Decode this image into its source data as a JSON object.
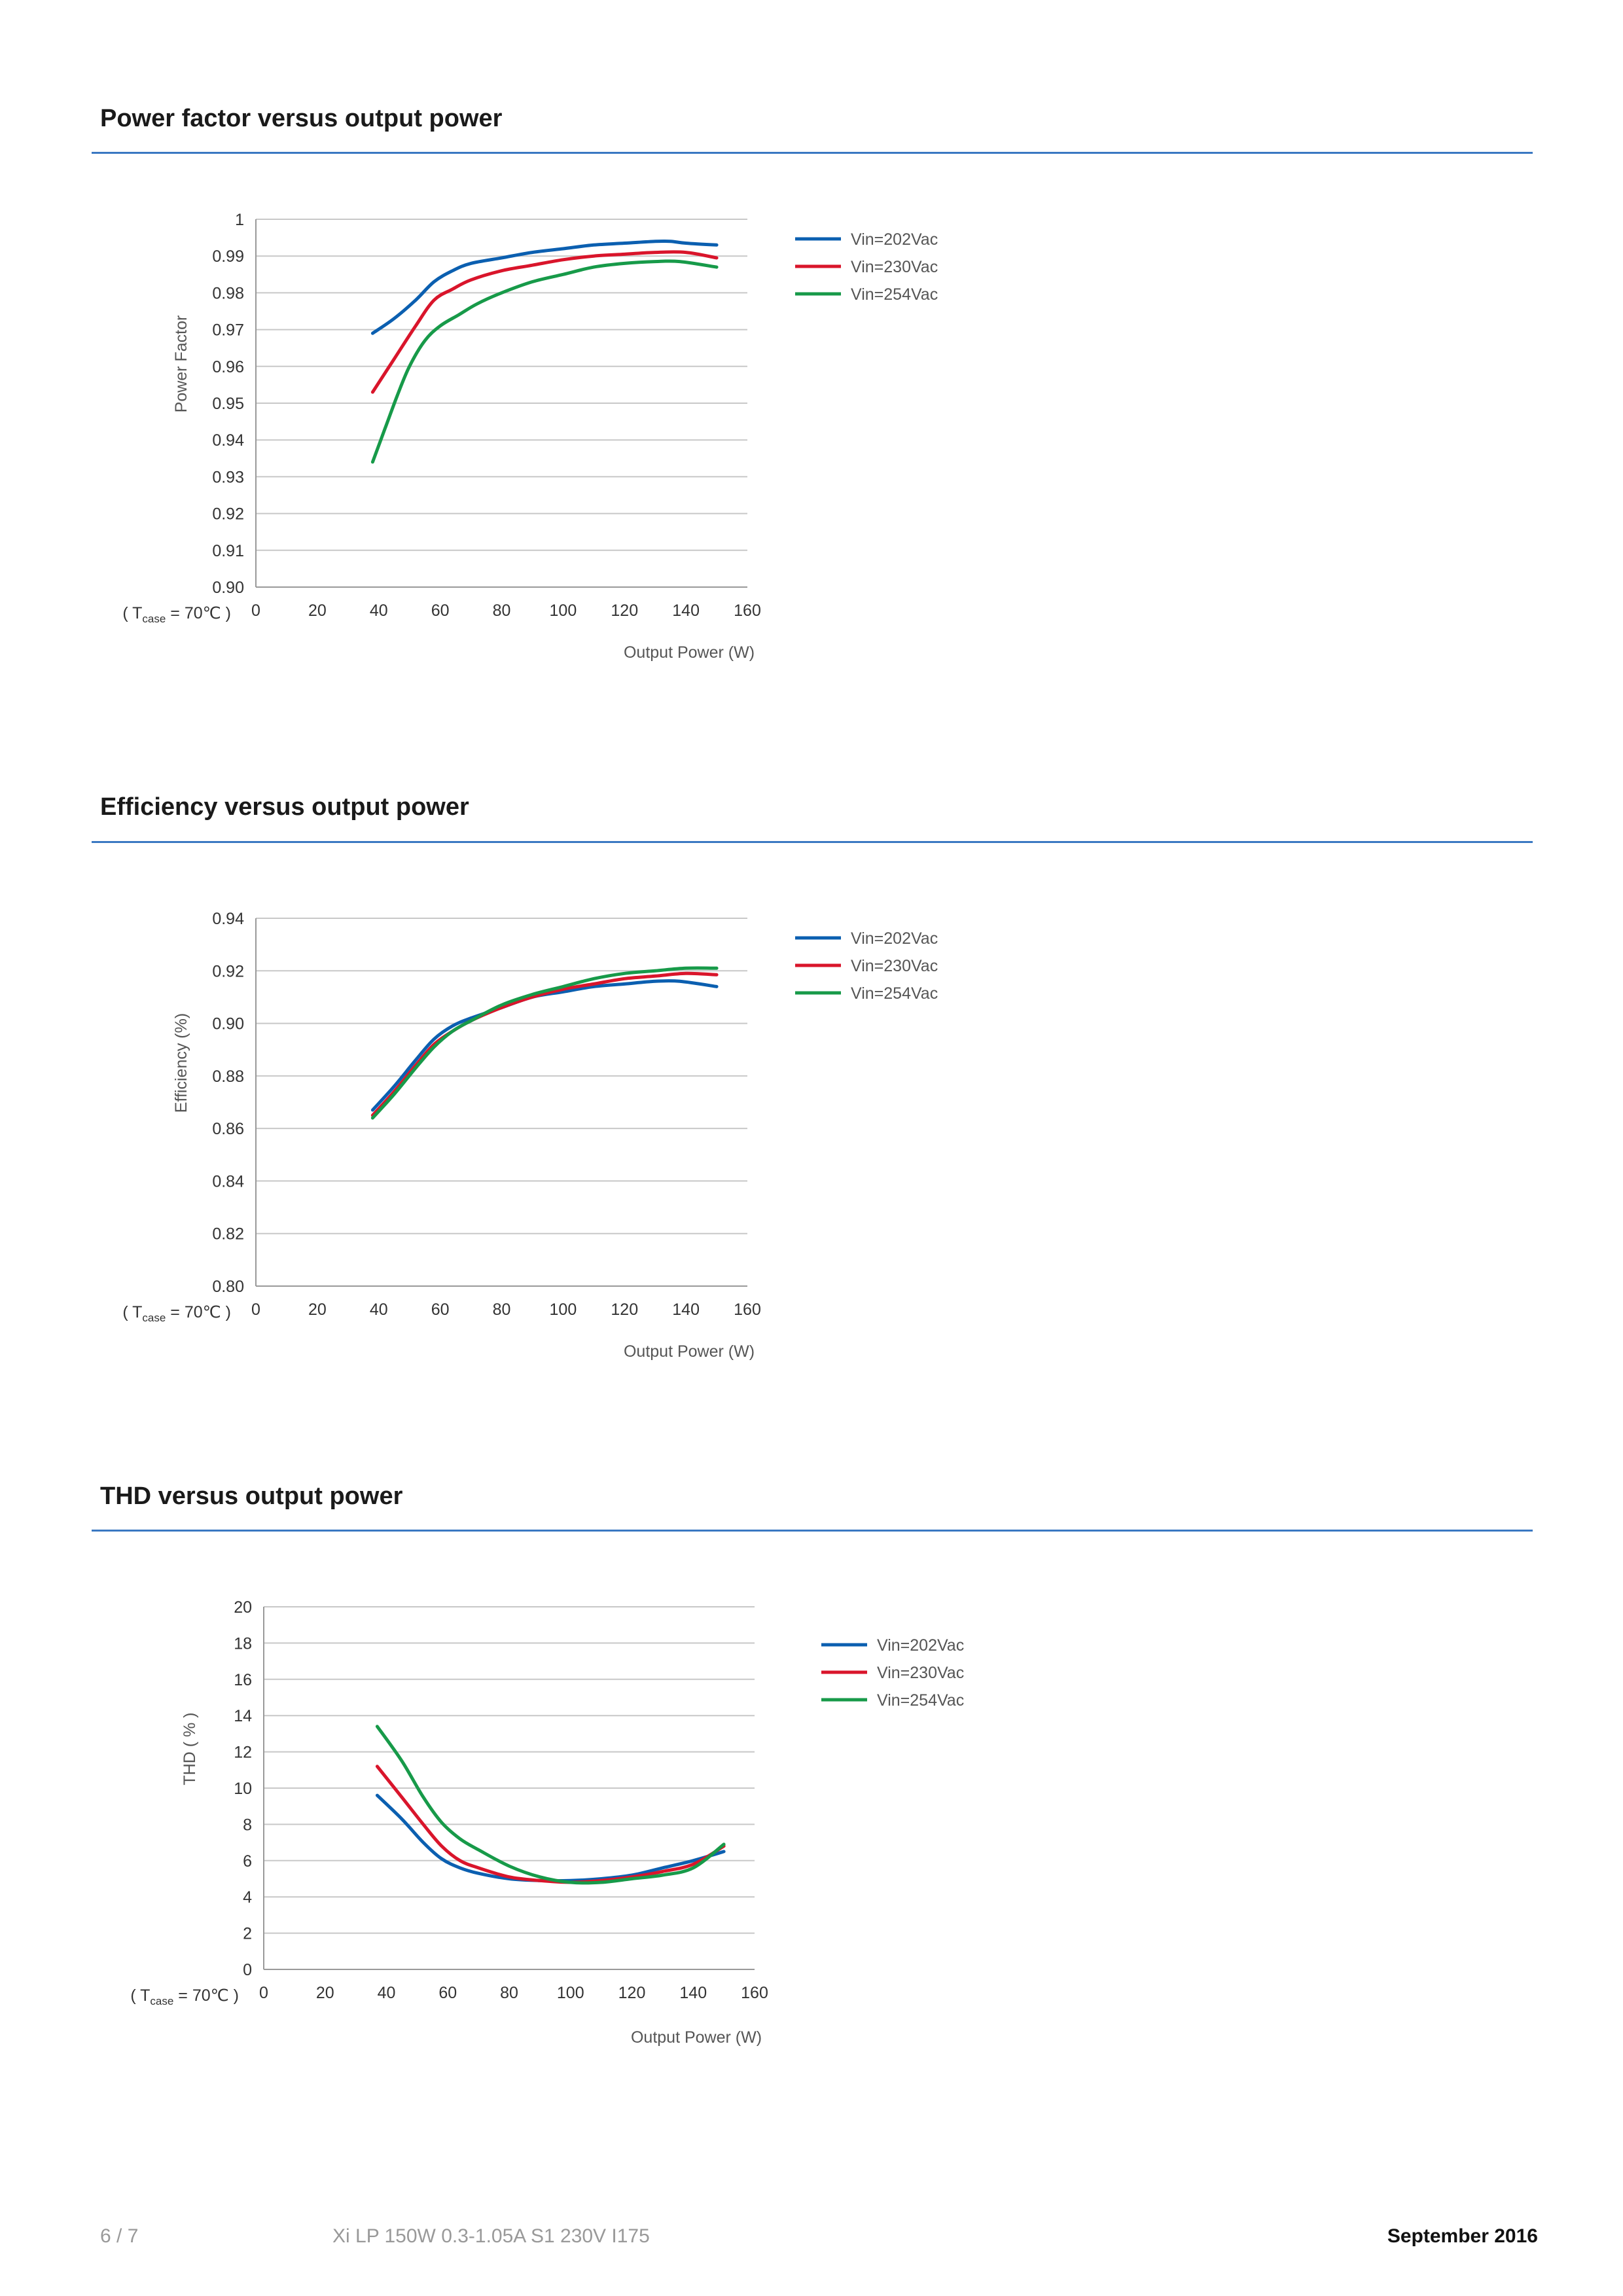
{
  "sections": [
    {
      "title": "Power factor versus output power",
      "chart_data": {
        "type": "line",
        "ylabel": "Power Factor",
        "xlabel": "Output Power (W)",
        "condition": {
          "prefix": "( T",
          "sub": "case",
          "suffix": " = 70℃ )"
        },
        "xlim": [
          0,
          160
        ],
        "ylim": [
          0.9,
          1.0
        ],
        "xticks": [
          0,
          20,
          40,
          60,
          80,
          100,
          120,
          140,
          160
        ],
        "xtick_labels": [
          "0",
          "20",
          "40",
          "60",
          "80",
          "100",
          "120",
          "140",
          "160"
        ],
        "yticks": [
          0.9,
          0.91,
          0.92,
          0.93,
          0.94,
          0.95,
          0.96,
          0.97,
          0.98,
          0.99,
          1.0
        ],
        "ytick_labels": [
          "0.90",
          "0.91",
          "0.92",
          "0.93",
          "0.94",
          "0.95",
          "0.96",
          "0.97",
          "0.98",
          "0.99",
          "1"
        ],
        "grid": true,
        "legend_position": "right",
        "series": [
          {
            "name": "Vin=202Vac",
            "color": "#0b5fb0",
            "x": [
              38,
              45,
              52,
              58,
              64,
              70,
              80,
              90,
              100,
              110,
              120,
              130,
              135,
              140,
              150
            ],
            "y": [
              0.969,
              0.973,
              0.978,
              0.983,
              0.986,
              0.988,
              0.9895,
              0.991,
              0.992,
              0.993,
              0.9935,
              0.994,
              0.994,
              0.9935,
              0.993
            ]
          },
          {
            "name": "Vin=230Vac",
            "color": "#d9152b",
            "x": [
              38,
              45,
              52,
              58,
              64,
              70,
              80,
              90,
              100,
              110,
              120,
              130,
              140,
              150
            ],
            "y": [
              0.953,
              0.962,
              0.971,
              0.978,
              0.981,
              0.9835,
              0.986,
              0.9875,
              0.989,
              0.99,
              0.9905,
              0.991,
              0.991,
              0.9895
            ]
          },
          {
            "name": "Vin=254Vac",
            "color": "#179a49",
            "x": [
              38,
              42,
              46,
              50,
              55,
              60,
              66,
              72,
              80,
              90,
              100,
              110,
              120,
              130,
              138,
              150
            ],
            "y": [
              0.934,
              0.943,
              0.952,
              0.96,
              0.967,
              0.971,
              0.974,
              0.977,
              0.98,
              0.983,
              0.985,
              0.987,
              0.988,
              0.9885,
              0.9885,
              0.987
            ]
          }
        ]
      }
    },
    {
      "title": "Efficiency versus output power",
      "chart_data": {
        "type": "line",
        "ylabel": "Efficiency (%)",
        "xlabel": "Output Power (W)",
        "condition": {
          "prefix": "( T",
          "sub": "case",
          "suffix": " = 70℃ )"
        },
        "xlim": [
          0,
          160
        ],
        "ylim": [
          0.8,
          0.94
        ],
        "xticks": [
          0,
          20,
          40,
          60,
          80,
          100,
          120,
          140,
          160
        ],
        "xtick_labels": [
          "0",
          "20",
          "40",
          "60",
          "80",
          "100",
          "120",
          "140",
          "160"
        ],
        "yticks": [
          0.8,
          0.82,
          0.84,
          0.86,
          0.88,
          0.9,
          0.92,
          0.94
        ],
        "ytick_labels": [
          "0.80",
          "0.82",
          "0.84",
          "0.86",
          "0.88",
          "0.90",
          "0.92",
          "0.94"
        ],
        "grid": true,
        "legend_position": "right",
        "series": [
          {
            "name": "Vin=202Vac",
            "color": "#0b5fb0",
            "x": [
              38,
              45,
              52,
              58,
              64,
              70,
              80,
              90,
              100,
              110,
              120,
              130,
              138,
              150
            ],
            "y": [
              0.867,
              0.876,
              0.886,
              0.894,
              0.899,
              0.902,
              0.906,
              0.91,
              0.912,
              0.914,
              0.915,
              0.916,
              0.916,
              0.914
            ]
          },
          {
            "name": "Vin=230Vac",
            "color": "#d9152b",
            "x": [
              38,
              45,
              52,
              58,
              64,
              70,
              80,
              90,
              100,
              110,
              120,
              130,
              140,
              150
            ],
            "y": [
              0.865,
              0.874,
              0.884,
              0.892,
              0.897,
              0.901,
              0.906,
              0.91,
              0.913,
              0.915,
              0.917,
              0.918,
              0.919,
              0.9185
            ]
          },
          {
            "name": "Vin=254Vac",
            "color": "#179a49",
            "x": [
              38,
              45,
              52,
              58,
              64,
              70,
              80,
              90,
              100,
              110,
              120,
              130,
              140,
              150
            ],
            "y": [
              0.864,
              0.873,
              0.883,
              0.891,
              0.897,
              0.901,
              0.907,
              0.911,
              0.914,
              0.917,
              0.919,
              0.92,
              0.921,
              0.921
            ]
          }
        ]
      }
    },
    {
      "title": "THD versus output power",
      "chart_data": {
        "type": "line",
        "ylabel": "THD ( % )",
        "xlabel": "Output Power (W)",
        "condition": {
          "prefix": "( T",
          "sub": "case",
          "suffix": " = 70℃ )"
        },
        "xlim": [
          0,
          160
        ],
        "ylim": [
          0,
          20
        ],
        "xticks": [
          0,
          20,
          40,
          60,
          80,
          100,
          120,
          140,
          160
        ],
        "xtick_labels": [
          "0",
          "20",
          "40",
          "60",
          "80",
          "100",
          "120",
          "140",
          "160"
        ],
        "yticks": [
          0,
          2,
          4,
          6,
          8,
          10,
          12,
          14,
          16,
          18,
          20
        ],
        "ytick_labels": [
          "0",
          "2",
          "4",
          "6",
          "8",
          "10",
          "12",
          "14",
          "16",
          "18",
          "20"
        ],
        "grid": true,
        "legend_position": "right",
        "series": [
          {
            "name": "Vin=202Vac",
            "color": "#0b5fb0",
            "x": [
              37,
              45,
              52,
              58,
              64,
              70,
              80,
              90,
              100,
              110,
              120,
              130,
              140,
              150
            ],
            "y": [
              9.6,
              8.3,
              7.0,
              6.1,
              5.6,
              5.3,
              5.0,
              4.9,
              4.9,
              5.0,
              5.2,
              5.6,
              6.0,
              6.5
            ]
          },
          {
            "name": "Vin=230Vac",
            "color": "#d9152b",
            "x": [
              37,
              45,
              52,
              58,
              64,
              70,
              80,
              90,
              100,
              110,
              120,
              130,
              140,
              150
            ],
            "y": [
              11.2,
              9.5,
              8.0,
              6.8,
              6.0,
              5.6,
              5.1,
              4.9,
              4.8,
              4.9,
              5.1,
              5.4,
              5.8,
              6.8
            ]
          },
          {
            "name": "Vin=254Vac",
            "color": "#179a49",
            "x": [
              37,
              45,
              52,
              58,
              64,
              70,
              80,
              90,
              100,
              110,
              120,
              130,
              140,
              150
            ],
            "y": [
              13.4,
              11.5,
              9.5,
              8.1,
              7.2,
              6.6,
              5.7,
              5.1,
              4.8,
              4.8,
              5.0,
              5.2,
              5.6,
              6.9
            ]
          }
        ]
      }
    }
  ],
  "footer": {
    "page": "6 / 7",
    "product": "Xi LP 150W 0.3-1.05A S1 230V I175",
    "date": "September 2016"
  }
}
